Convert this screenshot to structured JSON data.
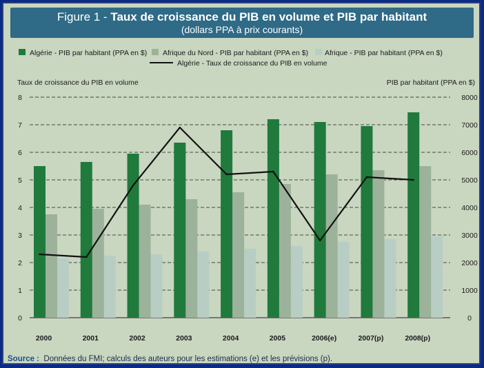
{
  "header": {
    "figure_label": "Figure 1 -",
    "title": "Taux de croissance du PIB en volume et PIB par habitant",
    "subtitle": "(dollars PPA à prix courants)"
  },
  "footer": {
    "source_label": "Source :",
    "source_text": "Données du FMI; calculs des auteurs pour les estimations (e) et les prévisions (p)."
  },
  "colors": {
    "algeria_bar": "#1f7a3c",
    "north_africa_bar": "#9db29a",
    "africa_bar": "#b8cec4",
    "line": "#111111",
    "background": "#c9d6c0",
    "title_bg": "#2f6a86"
  },
  "chart_data": {
    "type": "bar",
    "categories": [
      "2000",
      "2001",
      "2002",
      "2003",
      "2004",
      "2005",
      "2006(e)",
      "2007(p)",
      "2008(p)"
    ],
    "y_left": {
      "label": "Taux de croissance du PIB en volume",
      "range": [
        0,
        8
      ],
      "ticks": [
        "0",
        "1",
        "2",
        "3",
        "4",
        "5",
        "6",
        "7",
        "8"
      ]
    },
    "y_right": {
      "label": "PIB par habitant (PPA en $)",
      "range": [
        0,
        8000
      ],
      "ticks": [
        "0",
        "1000",
        "2000",
        "3000",
        "4000",
        "5000",
        "6000",
        "7000",
        "8000"
      ]
    },
    "series": [
      {
        "name": "Algérie - PIB par habitant (PPA en $)",
        "axis": "right",
        "kind": "bar",
        "values": [
          5500,
          5650,
          5950,
          6350,
          6800,
          7200,
          7100,
          6950,
          7450
        ]
      },
      {
        "name": "Afrique du Nord - PIB par habitant (PPA en $)",
        "axis": "right",
        "kind": "bar",
        "values": [
          3750,
          3950,
          4100,
          4300,
          4550,
          4850,
          5200,
          5350,
          5500
        ]
      },
      {
        "name": "Afrique - PIB par habitant (PPA en $)",
        "axis": "right",
        "kind": "bar",
        "values": [
          2150,
          2250,
          2300,
          2400,
          2500,
          2600,
          2750,
          2850,
          2950
        ]
      },
      {
        "name": "Algérie - Taux de croissance du PIB en volume",
        "axis": "left",
        "kind": "line",
        "values": [
          2.3,
          2.2,
          4.8,
          6.9,
          5.2,
          5.3,
          2.8,
          5.1,
          5.0
        ]
      }
    ],
    "grid": "horizontal dashed",
    "legend_position": "top"
  }
}
